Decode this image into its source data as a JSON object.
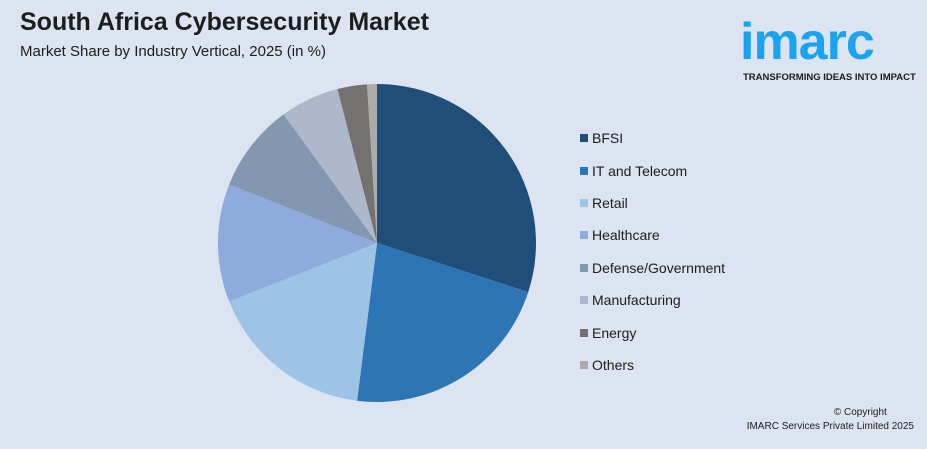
{
  "header": {
    "title": "South Africa Cybersecurity Market",
    "subtitle": "Market Share by Industry Vertical, 2025 (in %)"
  },
  "logo": {
    "word": "imarc",
    "tagline": "TRANSFORMING IDEAS INTO IMPACT",
    "color": "#1aa3f0"
  },
  "footer": {
    "copyright": "© Copyright",
    "company": "IMARC Services Private Limited 2025"
  },
  "chart_data": {
    "type": "pie",
    "title": "South Africa Cybersecurity Market",
    "subtitle": "Market Share by Industry Vertical, 2025 (in %)",
    "legend_position": "right",
    "categories": [
      "BFSI",
      "IT and Telecom",
      "Retail",
      "Healthcare",
      "Defense/Government",
      "Manufacturing",
      "Energy",
      "Others"
    ],
    "values": [
      30,
      22,
      17,
      12,
      9,
      6,
      3,
      1
    ],
    "colors": [
      "#1f4e79",
      "#2e75b6",
      "#9dc3e6",
      "#8faadc",
      "#8497b0",
      "#adb9ca",
      "#767171",
      "#aeaaaa"
    ]
  }
}
